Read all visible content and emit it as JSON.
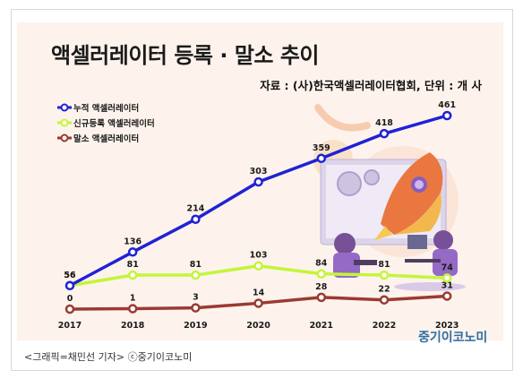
{
  "chart_data": {
    "type": "line",
    "title": "액셀러레이터 등록 · 말소 추이",
    "source": "자료 : (사)한국액셀러레이터협회, 단위 : 개 사",
    "x": [
      "2017",
      "2018",
      "2019",
      "2020",
      "2021",
      "2022",
      "2023"
    ],
    "series": [
      {
        "name": "누적 액셀러레이터",
        "color": "#1f22d6",
        "values": [
          56,
          136,
          214,
          303,
          359,
          418,
          461
        ]
      },
      {
        "name": "신규등록 액셀러레이터",
        "color": "#c4f53a",
        "values": [
          56,
          81,
          81,
          103,
          84,
          81,
          74
        ]
      },
      {
        "name": "말소 액셀러레이터",
        "color": "#9b3a33",
        "values": [
          0,
          1,
          3,
          14,
          28,
          22,
          31
        ]
      }
    ],
    "ylim": [
      0,
      480
    ],
    "grid": false,
    "legend": "top-left"
  },
  "caption": "<그래픽=채민선 기자>   ⓒ중기이코노미",
  "brand": "중기이코노미"
}
